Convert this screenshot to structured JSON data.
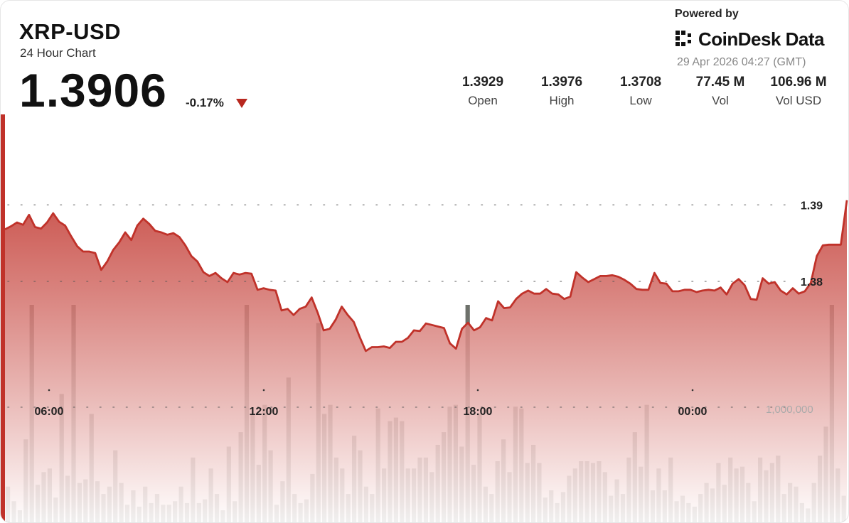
{
  "header": {
    "ticker": "XRP-USD",
    "subtitle": "24 Hour Chart",
    "price": "1.3906",
    "change": "-0.17%",
    "down_icon": "triangle-down-icon"
  },
  "branding": {
    "powered_by": "Powered by",
    "logo_text": "CoinDesk Data",
    "logo_icon": "coindesk-logo-icon",
    "timestamp": "29 Apr 2026 04:27 (GMT)"
  },
  "stats": [
    {
      "value": "1.3929",
      "label": "Open"
    },
    {
      "value": "1.3976",
      "label": "High"
    },
    {
      "value": "1.3708",
      "label": "Low"
    },
    {
      "value": "77.45 M",
      "label": "Vol"
    },
    {
      "value": "106.96 M",
      "label": "Vol USD"
    }
  ],
  "colors": {
    "line": "#c0322a",
    "fill_top": "#c0322a",
    "volume_bar": "#5a5d57",
    "accent_bar": "#c0322a"
  },
  "chart_data": {
    "type": "area",
    "title": "",
    "xlabel": "",
    "ylabel": "",
    "x_ticks": [
      "06:00",
      "12:00",
      "18:00",
      "00:00"
    ],
    "y_ticks": [
      1.39,
      1.38
    ],
    "y_tick_labels": [
      "1.39",
      "1.38"
    ],
    "ylim": [
      1.3695,
      1.3995
    ],
    "grid": true,
    "price_series": [
      1.3868,
      1.3872,
      1.3877,
      1.3874,
      1.3887,
      1.3871,
      1.3869,
      1.3877,
      1.3889,
      1.3878,
      1.3873,
      1.3859,
      1.3846,
      1.3839,
      1.3839,
      1.3837,
      1.3815,
      1.3826,
      1.3841,
      1.3851,
      1.3864,
      1.3854,
      1.3873,
      1.3882,
      1.3875,
      1.3866,
      1.3864,
      1.3861,
      1.3863,
      1.3858,
      1.3847,
      1.3833,
      1.3826,
      1.3812,
      1.3807,
      1.3811,
      1.3804,
      1.3799,
      1.3811,
      1.3809,
      1.3811,
      1.381,
      1.3789,
      1.3791,
      1.3789,
      1.3788,
      1.3762,
      1.3764,
      1.3756,
      1.3764,
      1.3767,
      1.3779,
      1.3759,
      1.3736,
      1.3738,
      1.375,
      1.3767,
      1.3756,
      1.3747,
      1.3727,
      1.3709,
      1.3714,
      1.3714,
      1.3715,
      1.3713,
      1.3721,
      1.3721,
      1.3726,
      1.3736,
      1.3735,
      1.3745,
      1.3743,
      1.3741,
      1.3739,
      1.3719,
      1.3712,
      1.3738,
      1.3746,
      1.3736,
      1.374,
      1.3752,
      1.3749,
      1.3774,
      1.3765,
      1.3766,
      1.3777,
      1.3784,
      1.3788,
      1.3784,
      1.3784,
      1.379,
      1.3784,
      1.3783,
      1.3777,
      1.378,
      1.3812,
      1.3805,
      1.3799,
      1.3803,
      1.3807,
      1.3807,
      1.3808,
      1.3806,
      1.3802,
      1.3797,
      1.379,
      1.3789,
      1.3789,
      1.3811,
      1.3798,
      1.3797,
      1.3787,
      1.3787,
      1.3789,
      1.3789,
      1.3786,
      1.3788,
      1.3789,
      1.3788,
      1.3792,
      1.3783,
      1.3797,
      1.3803,
      1.3795,
      1.3777,
      1.3776,
      1.3804,
      1.3797,
      1.3799,
      1.3788,
      1.3783,
      1.3791,
      1.3784,
      1.3787,
      1.3798,
      1.3833,
      1.3847,
      1.3848,
      1.3848,
      1.3848,
      1.3906
    ],
    "volume_series": [
      2.0,
      1.2,
      0.7,
      4.6,
      12.0,
      2.1,
      2.8,
      3.0,
      1.4,
      7.1,
      2.6,
      12.0,
      2.2,
      2.4,
      6.0,
      2.3,
      1.6,
      2.0,
      4.0,
      2.2,
      1.0,
      1.8,
      0.9,
      2.0,
      1.1,
      1.6,
      1.0,
      1.0,
      1.2,
      2.0,
      1.1,
      3.6,
      1.1,
      1.3,
      3.0,
      1.6,
      0.7,
      4.2,
      1.2,
      5.0,
      12.0,
      6.0,
      3.2,
      6.5,
      4.0,
      1.0,
      2.3,
      8.0,
      1.6,
      1.1,
      1.3,
      2.7,
      11.0,
      6.0,
      6.5,
      3.6,
      3.0,
      1.6,
      4.8,
      4.0,
      2.0,
      1.6,
      6.3,
      3.0,
      5.6,
      5.8,
      5.6,
      3.0,
      3.0,
      3.6,
      3.6,
      2.8,
      4.3,
      5.0,
      6.4,
      6.5,
      4.2,
      12.0,
      3.2,
      6.0,
      2.0,
      1.6,
      3.4,
      4.6,
      2.8,
      6.4,
      6.3,
      3.3,
      4.3,
      3.3,
      1.4,
      1.8,
      1.1,
      1.7,
      2.6,
      3.0,
      3.4,
      3.4,
      3.3,
      3.4,
      2.8,
      1.5,
      2.4,
      1.6,
      3.6,
      5.0,
      3.1,
      6.5,
      1.8,
      3.0,
      1.8,
      3.6,
      1.2,
      1.5,
      1.1,
      0.9,
      1.6,
      2.2,
      1.9,
      3.3,
      2.1,
      3.6,
      3.0,
      3.1,
      2.2,
      1.2,
      3.6,
      2.9,
      3.3,
      3.7,
      1.6,
      2.2,
      2.0,
      1.1,
      0.8,
      2.2,
      3.7,
      5.3,
      12.0,
      3.0,
      1.5
    ],
    "volume_tick_label": "1,000,000"
  }
}
